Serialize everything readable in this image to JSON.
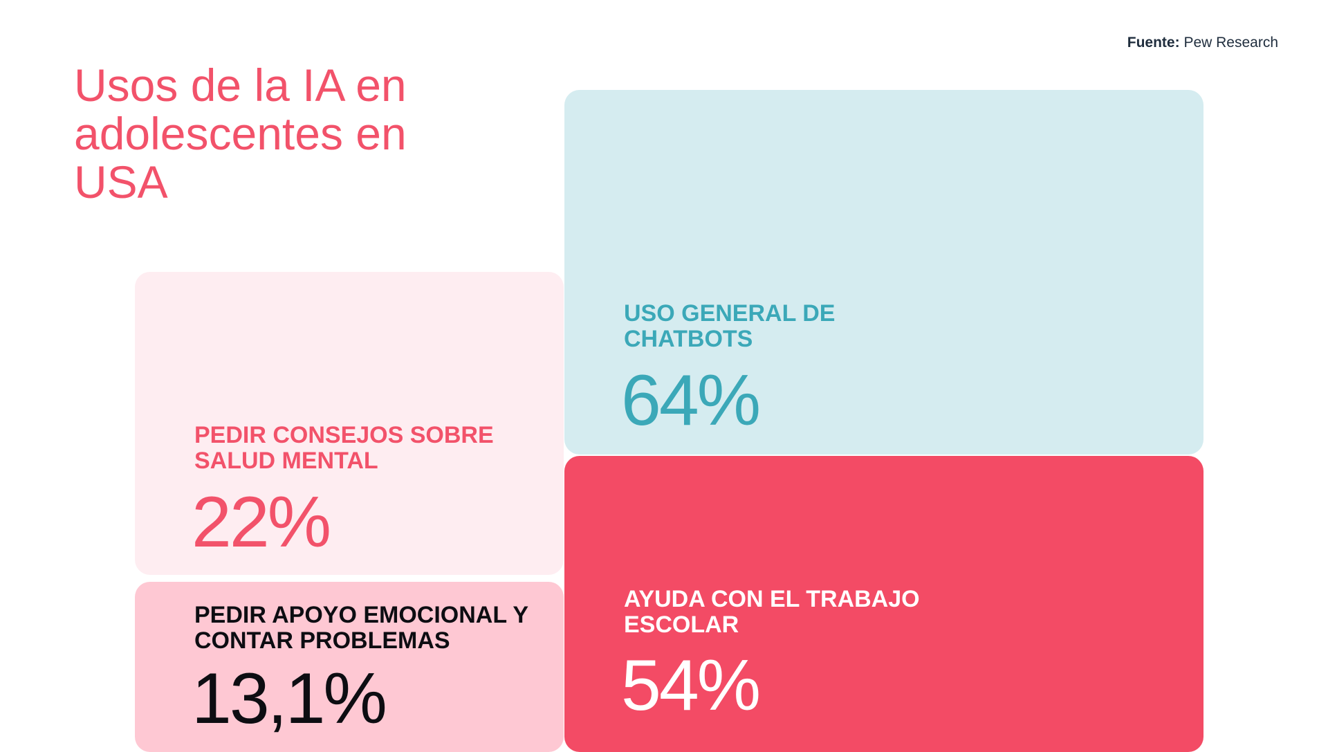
{
  "source": {
    "label": "Fuente:",
    "name": "Pew Research"
  },
  "title": "Usos de la IA en adolescentes en USA",
  "chart_data": {
    "type": "treemap",
    "title": "Usos de la IA en adolescentes en USA",
    "source": "Pew Research",
    "unit": "%",
    "categories": [
      "USO GENERAL DE CHATBOTS",
      "AYUDA CON EL TRABAJO ESCOLAR",
      "PEDIR CONSEJOS SOBRE SALUD MENTAL",
      "PEDIR APOYO EMOCIONAL Y CONTAR PROBLEMAS"
    ],
    "values": [
      64,
      54,
      22,
      13.1
    ],
    "items": [
      {
        "label": "USO GENERAL DE CHATBOTS",
        "value": 64,
        "display": "64%",
        "color": "#d5ecf0",
        "text_color": "#3ba8b8"
      },
      {
        "label": "AYUDA CON EL TRABAJO ESCOLAR",
        "value": 54,
        "display": "54%",
        "color": "#f34b65",
        "text_color": "#ffffff"
      },
      {
        "label": "PEDIR CONSEJOS SOBRE SALUD MENTAL",
        "value": 22,
        "display": "22%",
        "color": "#feedf1",
        "text_color": "#f2526a"
      },
      {
        "label": "PEDIR APOYO EMOCIONAL Y CONTAR PROBLEMAS",
        "value": 13.1,
        "display": "13,1%",
        "color": "#fec8d3",
        "text_color": "#0d0d12"
      }
    ]
  }
}
